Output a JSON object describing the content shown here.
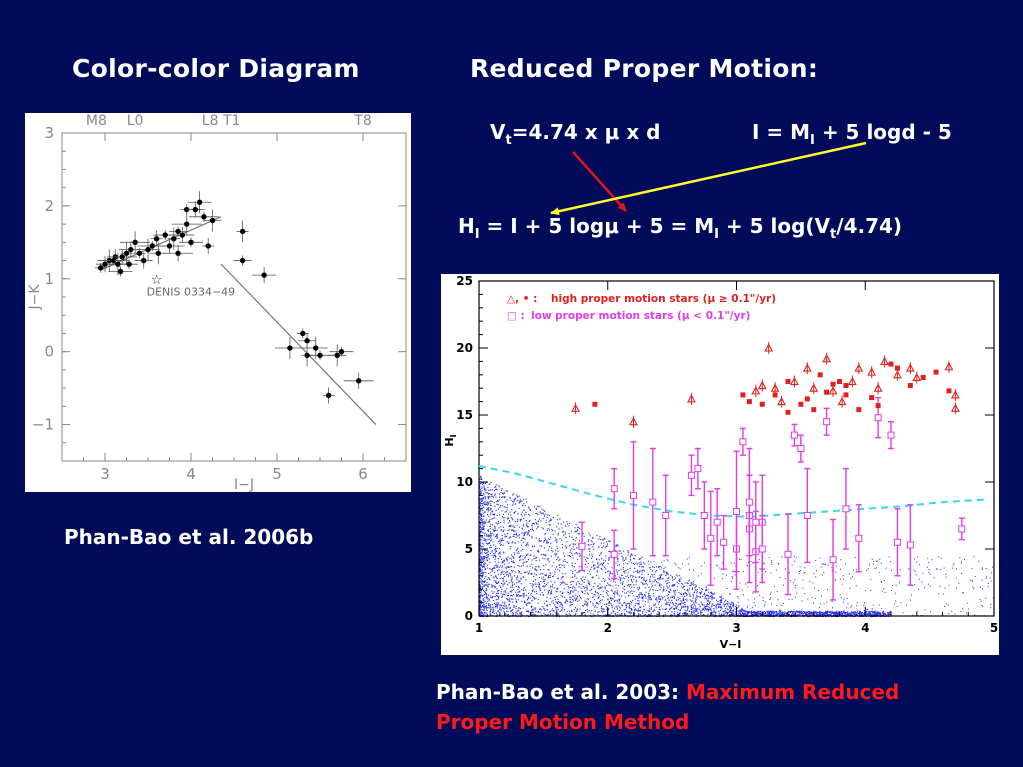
{
  "slide": {
    "left_title": "Color-color Diagram",
    "right_title": "Reduced Proper Motion:",
    "eq1": {
      "v": "V",
      "v_sub": "t",
      "rest": "=4.74 x μ x d"
    },
    "eq2": {
      "lhs": "I = M",
      "lhs_sub": "I",
      "rest": " + 5 logd - 5"
    },
    "eq3": {
      "h": "H",
      "h_sub": "I",
      "part1": " = I + 5 logμ + 5 = M",
      "m_sub": "I",
      "part2": " + 5 log(V",
      "v_sub": "t",
      "part3": "/4.74)"
    },
    "left_caption": "Phan-Bao et al. 2006b",
    "right_caption_1": "Phan-Bao et al. 2003: ",
    "right_caption_red_1": "Maximum Reduced",
    "right_caption_red_2": "Proper Motion Method",
    "arrow_colors": {
      "red": "#e8101a",
      "yellow": "#ffff2e"
    }
  },
  "chart_data": [
    {
      "type": "scatter",
      "xlabel": "I−J",
      "ylabel": "J−K",
      "xlim": [
        2.5,
        6.5
      ],
      "ylim": [
        -1.5,
        3.0
      ],
      "xticks": [
        3,
        4,
        5,
        6
      ],
      "yticks": [
        -1,
        0,
        1,
        2,
        3
      ],
      "top_labels": [
        {
          "text": "M8",
          "x": 2.9
        },
        {
          "text": "L0",
          "x": 3.35
        },
        {
          "text": "L8 T1",
          "x": 4.35
        },
        {
          "text": "T8",
          "x": 6.0
        }
      ],
      "annotation": {
        "text": "DENIS 0334−49",
        "x": 3.6,
        "y": 0.85
      },
      "star_point": {
        "x": 3.6,
        "y": 1.0
      },
      "fit_lines": [
        {
          "x": [
            2.95,
            4.35
          ],
          "y": [
            1.12,
            1.85
          ]
        },
        {
          "x": [
            4.35,
            6.15
          ],
          "y": [
            1.2,
            -1.0
          ]
        }
      ],
      "points": [
        [
          2.95,
          1.15
        ],
        [
          3.0,
          1.2
        ],
        [
          3.05,
          1.25
        ],
        [
          3.1,
          1.25
        ],
        [
          3.12,
          1.3
        ],
        [
          3.15,
          1.2
        ],
        [
          3.18,
          1.1
        ],
        [
          3.2,
          1.3
        ],
        [
          3.25,
          1.35
        ],
        [
          3.28,
          1.2
        ],
        [
          3.3,
          1.4
        ],
        [
          3.35,
          1.5
        ],
        [
          3.4,
          1.35
        ],
        [
          3.45,
          1.25
        ],
        [
          3.5,
          1.4
        ],
        [
          3.55,
          1.45
        ],
        [
          3.6,
          1.55
        ],
        [
          3.62,
          1.35
        ],
        [
          3.7,
          1.6
        ],
        [
          3.75,
          1.45
        ],
        [
          3.8,
          1.55
        ],
        [
          3.85,
          1.65
        ],
        [
          3.9,
          1.6
        ],
        [
          3.95,
          1.75
        ],
        [
          3.95,
          1.95
        ],
        [
          4.05,
          1.95
        ],
        [
          4.1,
          2.05
        ],
        [
          4.15,
          1.85
        ],
        [
          4.2,
          1.45
        ],
        [
          4.25,
          1.8
        ],
        [
          4.0,
          1.5
        ],
        [
          3.85,
          1.35
        ],
        [
          4.6,
          1.65
        ],
        [
          4.6,
          1.25
        ],
        [
          4.85,
          1.05
        ],
        [
          5.15,
          0.05
        ],
        [
          5.3,
          0.25
        ],
        [
          5.35,
          0.15
        ],
        [
          5.45,
          0.05
        ],
        [
          5.5,
          -0.05
        ],
        [
          5.6,
          -0.6
        ],
        [
          5.7,
          -0.05
        ],
        [
          5.75,
          0.0
        ],
        [
          5.95,
          -0.4
        ],
        [
          5.35,
          -0.05
        ]
      ]
    },
    {
      "type": "scatter",
      "xlabel": "V−I",
      "ylabel": "H_I",
      "xlim": [
        1,
        5
      ],
      "ylim": [
        0,
        25
      ],
      "xticks": [
        1,
        2,
        3,
        4,
        5
      ],
      "yticks": [
        0,
        5,
        10,
        15,
        20,
        25
      ],
      "legend": [
        {
          "symbol": "△, • :",
          "text": "high proper motion stars (μ ≥ 0.1\"/yr)",
          "color": "#e0201e"
        },
        {
          "symbol": "□ :",
          "text": "low proper motion stars (μ < 0.1\"/yr)",
          "color": "#e23ce6"
        }
      ],
      "series": [
        {
          "name": "high proper motion stars (μ ≥ 0.1\"/yr)",
          "color": "#e0201e",
          "triangles": [
            [
              1.75,
              15.5
            ],
            [
              2.2,
              14.5
            ],
            [
              2.65,
              16.2
            ],
            [
              3.15,
              16.8
            ],
            [
              3.2,
              17.2
            ],
            [
              3.25,
              20.0
            ],
            [
              3.3,
              17.0
            ],
            [
              3.35,
              16.0
            ],
            [
              3.45,
              17.5
            ],
            [
              3.55,
              18.5
            ],
            [
              3.6,
              17.0
            ],
            [
              3.7,
              19.2
            ],
            [
              3.75,
              16.8
            ],
            [
              3.82,
              16.0
            ],
            [
              3.9,
              17.5
            ],
            [
              3.95,
              18.5
            ],
            [
              4.05,
              18.2
            ],
            [
              4.1,
              17.0
            ],
            [
              4.15,
              19.0
            ],
            [
              4.25,
              18.0
            ],
            [
              4.35,
              18.5
            ],
            [
              4.4,
              17.8
            ],
            [
              4.65,
              18.6
            ],
            [
              4.7,
              16.5
            ],
            [
              4.7,
              15.5
            ]
          ],
          "dots": [
            [
              1.9,
              15.8
            ],
            [
              3.1,
              16.0
            ],
            [
              3.2,
              15.8
            ],
            [
              3.3,
              16.5
            ],
            [
              3.4,
              17.5
            ],
            [
              3.5,
              15.8
            ],
            [
              3.55,
              16.2
            ],
            [
              3.6,
              15.4
            ],
            [
              3.65,
              18.0
            ],
            [
              3.75,
              17.3
            ],
            [
              3.8,
              17.5
            ],
            [
              3.85,
              16.5
            ],
            [
              3.95,
              15.4
            ],
            [
              4.05,
              16.3
            ],
            [
              4.1,
              15.7
            ],
            [
              4.25,
              18.5
            ],
            [
              4.35,
              17.2
            ],
            [
              4.45,
              17.8
            ],
            [
              4.55,
              18.2
            ],
            [
              4.65,
              16.8
            ],
            [
              3.4,
              15.2
            ],
            [
              3.05,
              16.5
            ],
            [
              3.7,
              16.7
            ],
            [
              3.85,
              17.2
            ],
            [
              4.2,
              18.8
            ]
          ]
        },
        {
          "name": "low proper motion stars (μ < 0.1\"/yr)",
          "color": "#e23ce6",
          "squares": [
            {
              "x": 1.8,
              "y": 5.2,
              "err": 1.8
            },
            {
              "x": 2.05,
              "y": 4.6,
              "err": 1.8
            },
            {
              "x": 2.05,
              "y": 9.5,
              "err": 1.5
            },
            {
              "x": 2.2,
              "y": 9.0,
              "err": 4.0
            },
            {
              "x": 2.35,
              "y": 8.5,
              "err": 4.0
            },
            {
              "x": 2.45,
              "y": 7.5,
              "err": 3.0
            },
            {
              "x": 2.65,
              "y": 10.5,
              "err": 1.5
            },
            {
              "x": 2.7,
              "y": 11.0,
              "err": 1.5
            },
            {
              "x": 2.75,
              "y": 7.5,
              "err": 2.5
            },
            {
              "x": 2.8,
              "y": 5.8,
              "err": 3.5
            },
            {
              "x": 2.85,
              "y": 7.0,
              "err": 2.5
            },
            {
              "x": 2.9,
              "y": 5.5,
              "err": 2.0
            },
            {
              "x": 3.0,
              "y": 5.0,
              "err": 3.0
            },
            {
              "x": 3.0,
              "y": 7.8,
              "err": 4.5
            },
            {
              "x": 3.1,
              "y": 7.5,
              "err": 3.0
            },
            {
              "x": 3.1,
              "y": 6.5,
              "err": 4.0
            },
            {
              "x": 3.15,
              "y": 4.8,
              "err": 3.0
            },
            {
              "x": 3.2,
              "y": 7.0,
              "err": 3.5
            },
            {
              "x": 3.2,
              "y": 5.0,
              "err": 2.5
            },
            {
              "x": 3.05,
              "y": 13.0,
              "err": 1.0
            },
            {
              "x": 3.1,
              "y": 8.5,
              "err": 4.0
            },
            {
              "x": 3.15,
              "y": 7.0,
              "err": 3.0
            },
            {
              "x": 3.4,
              "y": 4.6,
              "err": 3.0
            },
            {
              "x": 3.45,
              "y": 13.5,
              "err": 0.8
            },
            {
              "x": 3.5,
              "y": 12.5,
              "err": 1.0
            },
            {
              "x": 3.55,
              "y": 7.5,
              "err": 3.5
            },
            {
              "x": 3.7,
              "y": 14.5,
              "err": 1.0
            },
            {
              "x": 3.75,
              "y": 4.2,
              "err": 3.0
            },
            {
              "x": 3.85,
              "y": 8.0,
              "err": 3.0
            },
            {
              "x": 3.95,
              "y": 5.8,
              "err": 2.5
            },
            {
              "x": 4.1,
              "y": 14.8,
              "err": 1.5
            },
            {
              "x": 4.2,
              "y": 13.5,
              "err": 1.0
            },
            {
              "x": 4.25,
              "y": 5.5,
              "err": 2.5
            },
            {
              "x": 4.35,
              "y": 5.3,
              "err": 3.0
            },
            {
              "x": 4.75,
              "y": 6.5,
              "err": 0.8
            }
          ]
        },
        {
          "name": "",
          "kind": "scattered-field-stars",
          "color": "#2028f0"
        },
        {
          "name": "",
          "kind": "dashed-curve",
          "color": "#3ad6ec",
          "x": [
            1.0,
            1.3,
            1.6,
            1.9,
            2.2,
            2.5,
            2.8,
            3.1,
            3.4,
            3.7,
            4.0,
            4.3,
            4.6,
            4.95
          ],
          "y": [
            11.2,
            10.6,
            9.8,
            9.0,
            8.3,
            7.8,
            7.5,
            7.4,
            7.6,
            7.8,
            8.0,
            8.2,
            8.5,
            8.7
          ]
        }
      ]
    }
  ]
}
